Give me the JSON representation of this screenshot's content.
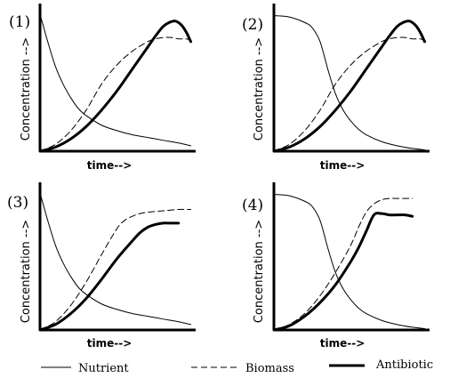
{
  "panels": [
    {
      "label": "(1)",
      "xlabel": "time-->",
      "ylabel": "Concentration -->",
      "chart_data": {
        "type": "line",
        "xlabel": "time-->",
        "ylabel": "Concentration -->",
        "xlim": [
          0,
          1
        ],
        "ylim": [
          0,
          1
        ],
        "x_ticks": [],
        "y_ticks": [],
        "grid": false,
        "series": [
          {
            "name": "Nutrient",
            "style": "thin-solid",
            "x": [
              0,
              0.05,
              0.1,
              0.15,
              0.2,
              0.25,
              0.3,
              0.4,
              0.5,
              0.6,
              0.7,
              0.8,
              0.9,
              0.98
            ],
            "y": [
              1,
              0.8,
              0.62,
              0.49,
              0.39,
              0.31,
              0.26,
              0.19,
              0.15,
              0.12,
              0.1,
              0.08,
              0.06,
              0.04
            ]
          },
          {
            "name": "Biomass",
            "style": "dashed",
            "x": [
              0,
              0.1,
              0.2,
              0.3,
              0.4,
              0.5,
              0.6,
              0.7,
              0.75,
              0.8,
              0.85,
              0.9,
              0.95,
              0.98
            ],
            "y": [
              0,
              0.05,
              0.15,
              0.3,
              0.49,
              0.63,
              0.73,
              0.8,
              0.82,
              0.83,
              0.83,
              0.82,
              0.82,
              0.81
            ]
          },
          {
            "name": "Antibiotic",
            "style": "thick-solid",
            "x": [
              0,
              0.1,
              0.2,
              0.3,
              0.4,
              0.5,
              0.6,
              0.65,
              0.7,
              0.75,
              0.8,
              0.84,
              0.88,
              0.92,
              0.95,
              0.98
            ],
            "y": [
              0,
              0.03,
              0.09,
              0.18,
              0.3,
              0.44,
              0.6,
              0.68,
              0.76,
              0.84,
              0.91,
              0.94,
              0.95,
              0.92,
              0.87,
              0.8
            ]
          }
        ]
      }
    },
    {
      "label": "(2)",
      "xlabel": "time-->",
      "ylabel": "Concentration -->",
      "chart_data": {
        "type": "line",
        "xlabel": "time-->",
        "ylabel": "Concentration -->",
        "xlim": [
          0,
          1
        ],
        "ylim": [
          0,
          1
        ],
        "x_ticks": [],
        "y_ticks": [],
        "grid": false,
        "series": [
          {
            "name": "Nutrient",
            "style": "thin-solid",
            "x": [
              0,
              0.1,
              0.2,
              0.25,
              0.3,
              0.35,
              0.4,
              0.45,
              0.5,
              0.55,
              0.6,
              0.7,
              0.8,
              0.9,
              0.98
            ],
            "y": [
              0.99,
              0.98,
              0.94,
              0.9,
              0.8,
              0.6,
              0.42,
              0.3,
              0.22,
              0.16,
              0.12,
              0.07,
              0.04,
              0.02,
              0.01
            ]
          },
          {
            "name": "Biomass",
            "style": "dashed",
            "x": [
              0,
              0.1,
              0.2,
              0.3,
              0.4,
              0.5,
              0.6,
              0.7,
              0.75,
              0.8,
              0.85,
              0.9,
              0.95,
              0.98
            ],
            "y": [
              0,
              0.05,
              0.15,
              0.3,
              0.49,
              0.63,
              0.73,
              0.8,
              0.82,
              0.83,
              0.83,
              0.82,
              0.82,
              0.81
            ]
          },
          {
            "name": "Antibiotic",
            "style": "thick-solid",
            "x": [
              0,
              0.1,
              0.2,
              0.3,
              0.4,
              0.5,
              0.6,
              0.65,
              0.7,
              0.75,
              0.8,
              0.84,
              0.88,
              0.92,
              0.95,
              0.98
            ],
            "y": [
              0,
              0.03,
              0.09,
              0.18,
              0.3,
              0.44,
              0.6,
              0.68,
              0.76,
              0.84,
              0.91,
              0.94,
              0.95,
              0.92,
              0.87,
              0.8
            ]
          }
        ]
      }
    },
    {
      "label": "(3)",
      "xlabel": "time-->",
      "ylabel": "Concentration -->",
      "chart_data": {
        "type": "line",
        "xlabel": "time-->",
        "ylabel": "Concentration -->",
        "xlim": [
          0,
          1
        ],
        "ylim": [
          0,
          1
        ],
        "x_ticks": [],
        "y_ticks": [],
        "grid": false,
        "series": [
          {
            "name": "Nutrient",
            "style": "thin-solid",
            "x": [
              0,
              0.05,
              0.1,
              0.15,
              0.2,
              0.25,
              0.3,
              0.4,
              0.5,
              0.6,
              0.7,
              0.8,
              0.9,
              0.98
            ],
            "y": [
              1,
              0.8,
              0.62,
              0.49,
              0.39,
              0.31,
              0.26,
              0.19,
              0.15,
              0.12,
              0.1,
              0.08,
              0.06,
              0.04
            ]
          },
          {
            "name": "Biomass",
            "style": "dashed",
            "x": [
              0,
              0.1,
              0.2,
              0.3,
              0.4,
              0.5,
              0.55,
              0.6,
              0.65,
              0.7,
              0.8,
              0.9,
              0.98
            ],
            "y": [
              0,
              0.06,
              0.18,
              0.35,
              0.55,
              0.74,
              0.8,
              0.83,
              0.85,
              0.86,
              0.87,
              0.88,
              0.88
            ]
          },
          {
            "name": "Antibiotic",
            "style": "thick-solid",
            "x": [
              0,
              0.1,
              0.2,
              0.3,
              0.4,
              0.5,
              0.6,
              0.65,
              0.7,
              0.75,
              0.8,
              0.85,
              0.9
            ],
            "y": [
              0,
              0.04,
              0.12,
              0.23,
              0.37,
              0.52,
              0.65,
              0.71,
              0.75,
              0.77,
              0.78,
              0.78,
              0.78
            ]
          }
        ]
      }
    },
    {
      "label": "(4)",
      "xlabel": "time-->",
      "ylabel": "Concentration -->",
      "chart_data": {
        "type": "line",
        "xlabel": "time-->",
        "ylabel": "Concentration -->",
        "xlim": [
          0,
          1
        ],
        "ylim": [
          0,
          1
        ],
        "x_ticks": [],
        "y_ticks": [],
        "grid": false,
        "series": [
          {
            "name": "Nutrient",
            "style": "thin-solid",
            "x": [
              0,
              0.1,
              0.2,
              0.25,
              0.3,
              0.35,
              0.4,
              0.45,
              0.5,
              0.55,
              0.6,
              0.7,
              0.8,
              0.9,
              0.98
            ],
            "y": [
              0.99,
              0.98,
              0.94,
              0.9,
              0.8,
              0.6,
              0.42,
              0.3,
              0.22,
              0.16,
              0.12,
              0.07,
              0.04,
              0.02,
              0.01
            ]
          },
          {
            "name": "Biomass",
            "style": "dashed",
            "x": [
              0,
              0.1,
              0.2,
              0.3,
              0.4,
              0.5,
              0.55,
              0.6,
              0.65,
              0.7,
              0.75,
              0.8,
              0.85,
              0.9
            ],
            "y": [
              0,
              0.04,
              0.12,
              0.25,
              0.42,
              0.62,
              0.75,
              0.86,
              0.92,
              0.95,
              0.96,
              0.96,
              0.96,
              0.96
            ]
          },
          {
            "name": "Antibiotic",
            "style": "thick-solid",
            "x": [
              0,
              0.1,
              0.2,
              0.3,
              0.4,
              0.5,
              0.55,
              0.6,
              0.65,
              0.7,
              0.75,
              0.8,
              0.85,
              0.9
            ],
            "y": [
              0,
              0.03,
              0.1,
              0.2,
              0.33,
              0.5,
              0.6,
              0.72,
              0.84,
              0.85,
              0.84,
              0.84,
              0.84,
              0.83
            ]
          }
        ]
      }
    }
  ],
  "legend": [
    {
      "label": "Nutrient",
      "style": "thin-solid"
    },
    {
      "label": "Biomass",
      "style": "dashed"
    },
    {
      "label": "Antibiotic",
      "style": "thick-solid"
    }
  ]
}
